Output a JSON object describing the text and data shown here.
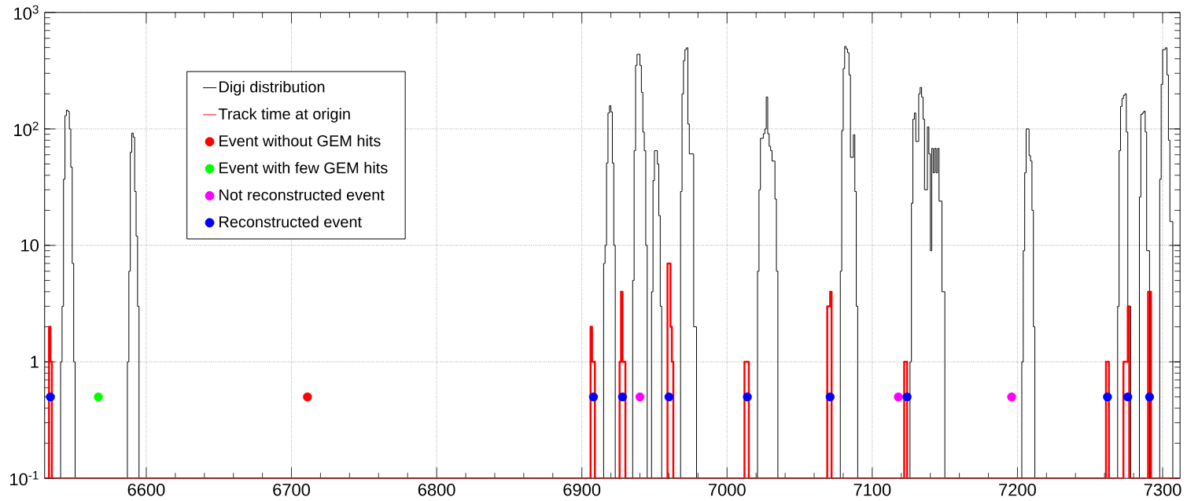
{
  "chart_data": {
    "type": "step",
    "log": "y",
    "grid": true,
    "legend": "top left",
    "xlim": [
      6530,
      7312
    ],
    "ylim": [
      0.1,
      1000
    ],
    "xticks": [
      6600,
      6700,
      6800,
      6900,
      7000,
      7100,
      7200,
      7300
    ],
    "yticks": [
      {
        "value": 0.1,
        "label": "10$^{-1}$"
      },
      1,
      10,
      {
        "value": 100,
        "label": "10$^{2}$"
      },
      {
        "value": 1000,
        "label": "10$^{3}$"
      }
    ],
    "series": [
      {
        "name": "Digi distribution",
        "color": "#000000",
        "x": [
          6530,
          6541,
          6542,
          6543,
          6544,
          6545,
          6546,
          6547,
          6548,
          6549,
          6550,
          6551,
          6587,
          6588,
          6589,
          6590,
          6591,
          6592,
          6593,
          6594,
          6595,
          6915,
          6916,
          6917,
          6918,
          6919,
          6920,
          6921,
          6922,
          6923,
          6935,
          6936,
          6937,
          6938,
          6939,
          6940,
          6941,
          6942,
          6943,
          6944,
          6945,
          6948,
          6949,
          6950,
          6951,
          6952,
          6953,
          6954,
          6955,
          6968,
          6969,
          6970,
          6971,
          6972,
          6973,
          6974,
          6975,
          6976,
          6977,
          6978,
          6979,
          7021,
          7022,
          7023,
          7024,
          7025,
          7026,
          7027,
          7028,
          7029,
          7030,
          7031,
          7032,
          7033,
          7034,
          7035,
          7078,
          7079,
          7080,
          7081,
          7082,
          7083,
          7084,
          7085,
          7086,
          7087,
          7088,
          7089,
          7090,
          7126,
          7127,
          7128,
          7129,
          7130,
          7131,
          7132,
          7133,
          7134,
          7135,
          7136,
          7137,
          7138,
          7139,
          7140,
          7141,
          7142,
          7143,
          7144,
          7145,
          7146,
          7147,
          7148,
          7149,
          7150,
          7203,
          7204,
          7205,
          7206,
          7207,
          7208,
          7209,
          7210,
          7211,
          7212,
          7269,
          7270,
          7271,
          7272,
          7273,
          7274,
          7275,
          7276,
          7277,
          7278,
          7284,
          7285,
          7286,
          7287,
          7288,
          7289,
          7290,
          7291,
          7298,
          7299,
          7300,
          7301,
          7302,
          7303,
          7304,
          7305,
          7306,
          7307,
          7312
        ],
        "values": [
          0.1,
          1,
          3,
          37,
          130,
          145,
          141,
          100,
          47,
          7,
          1,
          0.1,
          1,
          6,
          63,
          92,
          85,
          29,
          12,
          3,
          0.1,
          7,
          10,
          51,
          137,
          158,
          140,
          51,
          10,
          0.1,
          5,
          65,
          351,
          437,
          437,
          351,
          206,
          94,
          65,
          10,
          0.1,
          4,
          36,
          65,
          65,
          50,
          18,
          3,
          0.1,
          29,
          200,
          386,
          480,
          497,
          110,
          61,
          61,
          61,
          2,
          2,
          0.1,
          6,
          30,
          83,
          83,
          91,
          100,
          188,
          91,
          71,
          65,
          53,
          53,
          25,
          6,
          0.1,
          6,
          97,
          330,
          511,
          486,
          451,
          291,
          57,
          57,
          89,
          29,
          3,
          0.1,
          1,
          23,
          121,
          137,
          78,
          78,
          200,
          227,
          188,
          121,
          30,
          30,
          104,
          61,
          9,
          68,
          42,
          68,
          42,
          68,
          24,
          24,
          4,
          4,
          0.1,
          1,
          9,
          42,
          100,
          100,
          59,
          53,
          20,
          2,
          0.1,
          3,
          65,
          156,
          182,
          194,
          200,
          94,
          3,
          3,
          0.1,
          26,
          133,
          137,
          142,
          94,
          9,
          9,
          0.1,
          37,
          241,
          480,
          480,
          497,
          291,
          80,
          16,
          16,
          0.1,
          0.1
        ]
      },
      {
        "name": "Track time at origin",
        "color": "#ff0000",
        "x": [
          6530,
          6533,
          6534,
          6535,
          6906,
          6907,
          6908,
          6909,
          6926,
          6927,
          6928,
          6929,
          6930,
          6959,
          6960,
          6961,
          6962,
          6963,
          7012,
          7013,
          7014,
          7015,
          7069,
          7070,
          7071,
          7072,
          7122,
          7123,
          7124,
          7261,
          7262,
          7263,
          7273,
          7274,
          7275,
          7276,
          7277,
          7290,
          7291,
          7292,
          7312
        ],
        "values": [
          0.1,
          2,
          1,
          0.1,
          2,
          1,
          1,
          0.1,
          1,
          4,
          1,
          1,
          0.1,
          7,
          7,
          2,
          1,
          0.1,
          1,
          1,
          1,
          0.1,
          3,
          3,
          4,
          0.1,
          1,
          1,
          0.1,
          1,
          1,
          0.1,
          1,
          1,
          1,
          3,
          0.1,
          4,
          4,
          0.1,
          0.1
        ]
      },
      {
        "name": "Event without GEM hits",
        "type": "scatter",
        "color": "#ff0000",
        "x": [
          6711
        ],
        "values": [
          0.5
        ]
      },
      {
        "name": "Event with few GEM hits",
        "type": "scatter",
        "color": "#00ff00",
        "x": [
          6567
        ],
        "values": [
          0.5
        ]
      },
      {
        "name": "Not reconstructed event",
        "type": "scatter",
        "color": "#ff00ff",
        "x": [
          6940,
          7118,
          7196
        ],
        "values": [
          0.5,
          0.5,
          0.5
        ]
      },
      {
        "name": "Reconstructed event",
        "type": "scatter",
        "color": "#0000ff",
        "x": [
          6534,
          6908,
          6928,
          6960,
          7014,
          7071,
          7124,
          7262,
          7276,
          7291
        ],
        "values": [
          0.5,
          0.5,
          0.5,
          0.5,
          0.5,
          0.5,
          0.5,
          0.5,
          0.5,
          0.5
        ]
      }
    ]
  }
}
